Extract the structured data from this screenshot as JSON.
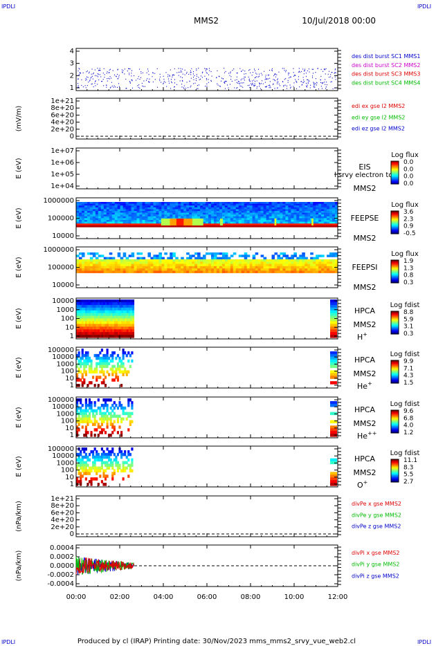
{
  "corner_label": "IPDLI",
  "header": {
    "spacecraft": "MMS2",
    "datetime": "10/Jul/2018 00:00"
  },
  "footer": {
    "text": "Produced by cl (IRAP)   Printing date: 30/Nov/2023   mms_mms2_srvy_vue_web2.cl"
  },
  "colors": {
    "c_blue": "#0000cc",
    "c_magenta": "#cc00cc",
    "c_red": "#dd0000",
    "c_green": "#00bb00"
  },
  "chart_data": {
    "type": "heatmap",
    "xlim": [
      "00:00",
      "12:00"
    ],
    "x_ticks": [
      "00:00",
      "02:00",
      "04:00",
      "06:00",
      "08:00",
      "10:00",
      "12:00"
    ],
    "panels": [
      {
        "id": "burst",
        "ylabel": "",
        "yticks": [
          "4",
          "3",
          "2",
          "1"
        ],
        "legend": [
          {
            "text": "des dist burst SC1 MMS1",
            "color": "c_blue"
          },
          {
            "text": "des dist burst SC2 MMS2",
            "color": "c_magenta"
          },
          {
            "text": "des dist burst SC3 MMS3",
            "color": "c_red"
          },
          {
            "text": "des dist burst SC4 MMS4",
            "color": "c_green"
          }
        ]
      },
      {
        "id": "edi",
        "ylabel": "(mV/m)",
        "yticks": [
          "1e+21",
          "8e+20",
          "6e+20",
          "4e+20",
          "2e+20",
          "0"
        ],
        "legend": [
          {
            "text": "edi ex gse l2 MMS2",
            "color": "c_red"
          },
          {
            "text": "edi ey gse l2 MMS2",
            "color": "c_green"
          },
          {
            "text": "edi ez gse l2 MMS2",
            "color": "c_blue"
          }
        ]
      },
      {
        "id": "eis",
        "ylabel": "E (eV)",
        "yticks": [
          "1e+07",
          "1e+06",
          "1e+05",
          "1e+04"
        ],
        "instrument": "EIS",
        "sc": "MMS2",
        "note": "l srvy electron to",
        "cbar_title": "Log flux",
        "cbar_ticks": [
          "0.0",
          "0.0",
          "0.0",
          "0.0"
        ]
      },
      {
        "id": "feepse",
        "ylabel": "E (eV)",
        "yticks": [
          "1000000",
          "100000",
          "10000"
        ],
        "instrument": "FEEPSE",
        "sc": "MMS2",
        "cbar_title": "Log flux",
        "cbar_ticks": [
          "3.6",
          "2.3",
          "0.9",
          "-0.5"
        ]
      },
      {
        "id": "feepsi",
        "ylabel": "E (eV)",
        "yticks": [
          "1000000",
          "100000",
          "10000"
        ],
        "instrument": "FEEPSI",
        "sc": "MMS2",
        "cbar_title": "Log flux",
        "cbar_ticks": [
          "1.9",
          "1.3",
          "0.8",
          "0.3"
        ]
      },
      {
        "id": "hpca_h",
        "ylabel": "E (eV)",
        "yticks": [
          "10000",
          "1000",
          "100",
          "10",
          "1"
        ],
        "instrument": "HPCA",
        "sc": "MMS2",
        "species": "H",
        "charge": "+",
        "cbar_title": "Log fdist",
        "cbar_ticks": [
          "8.8",
          "5.9",
          "3.1",
          "0.3"
        ]
      },
      {
        "id": "hpca_he",
        "ylabel": "E (eV)",
        "yticks": [
          "100000",
          "10000",
          "1000",
          "100",
          "10",
          "1"
        ],
        "instrument": "HPCA",
        "sc": "MMS2",
        "species": "He",
        "charge": "+",
        "cbar_title": "Log fdist",
        "cbar_ticks": [
          "9.9",
          "7.1",
          "4.3",
          "1.5"
        ]
      },
      {
        "id": "hpca_hepp",
        "ylabel": "E (eV)",
        "yticks": [
          "100000",
          "10000",
          "1000",
          "100",
          "10",
          "1"
        ],
        "instrument": "HPCA",
        "sc": "MMS2",
        "species": "He",
        "charge": "++",
        "cbar_title": "Log fdist",
        "cbar_ticks": [
          "9.6",
          "6.8",
          "4.0",
          "1.2"
        ]
      },
      {
        "id": "hpca_o",
        "ylabel": "E (eV)",
        "yticks": [
          "100000",
          "10000",
          "1000",
          "100",
          "10",
          "1"
        ],
        "instrument": "HPCA",
        "sc": "MMS2",
        "species": "O",
        "charge": "+",
        "cbar_title": "Log fdist",
        "cbar_ticks": [
          "11.1",
          "8.3",
          "5.5",
          "2.7"
        ]
      },
      {
        "id": "divpe",
        "ylabel": "(nPa/km)",
        "yticks": [
          "1e+21",
          "8e+20",
          "6e+20",
          "4e+20",
          "2e+20",
          "0"
        ],
        "legend": [
          {
            "text": "divPe x gse MMS2",
            "color": "c_red"
          },
          {
            "text": "divPe y gse MMS2",
            "color": "c_green"
          },
          {
            "text": "divPe z gse MMS2",
            "color": "c_blue"
          }
        ]
      },
      {
        "id": "divpi",
        "ylabel": "(nPa/km)",
        "yticks": [
          "0.0004",
          "0.0002",
          "0.0000",
          "-0.0002",
          "-0.0004"
        ],
        "legend": [
          {
            "text": "divPi x gse MMS2",
            "color": "c_red"
          },
          {
            "text": "divPi y gse MMS2",
            "color": "c_green"
          },
          {
            "text": "divPi z gse MMS2",
            "color": "c_blue"
          }
        ]
      }
    ]
  }
}
